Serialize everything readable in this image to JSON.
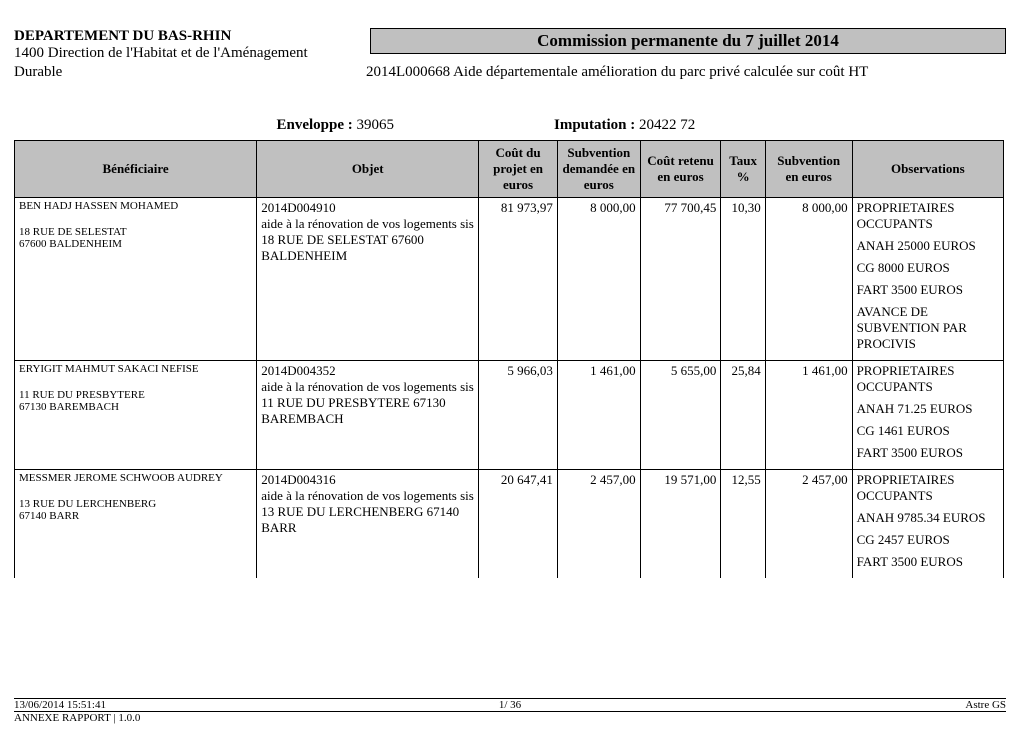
{
  "header": {
    "department": "DEPARTEMENT DU BAS-RHIN",
    "direction_line1": "1400 Direction de l'Habitat et de l'Aménagement",
    "direction_line2": "Durable",
    "commission_title": "Commission permanente du 7 juillet 2014",
    "dossier": "2014L000668 Aide départementale amélioration du parc privé calculée sur coût HT",
    "enveloppe_label": "Enveloppe :",
    "enveloppe_value": "39065",
    "imputation_label": "Imputation :",
    "imputation_value": "20422  72"
  },
  "columns": {
    "beneficiaire": "Bénéficiaire",
    "objet": "Objet",
    "cout_projet": "Coût du projet en euros",
    "subv_demandee": "Subvention demandée en euros",
    "cout_retenu": "Coût retenu en euros",
    "taux": "Taux %",
    "subv_euros": "Subvention en euros",
    "observations": "Observations"
  },
  "rows": [
    {
      "benef_name": "BEN HADJ HASSEN MOHAMED",
      "benef_addr1": "18 RUE DE SELESTAT",
      "benef_addr2": "67600 BALDENHEIM",
      "objet_ref": "2014D004910",
      "objet_desc": "aide à la rénovation de vos logements sis 18 RUE DE SELESTAT 67600 BALDENHEIM",
      "cout_projet": "81 973,97",
      "subv_demandee": "8 000,00",
      "cout_retenu": "77 700,45",
      "taux": "10,30",
      "subv_euros": "8 000,00",
      "obs": [
        "PROPRIETAIRES OCCUPANTS",
        "ANAH 25000 EUROS",
        "CG 8000 EUROS",
        "FART 3500 EUROS",
        "AVANCE DE SUBVENTION PAR PROCIVIS"
      ]
    },
    {
      "benef_name": "ERYIGIT MAHMUT SAKACI NEFISE",
      "benef_addr1": "11 RUE DU PRESBYTERE",
      "benef_addr2": "67130 BAREMBACH",
      "objet_ref": "2014D004352",
      "objet_desc": "aide à la rénovation de vos logements sis 11 RUE DU PRESBYTERE 67130 BAREMBACH",
      "cout_projet": "5 966,03",
      "subv_demandee": "1 461,00",
      "cout_retenu": "5 655,00",
      "taux": "25,84",
      "subv_euros": "1 461,00",
      "obs": [
        "PROPRIETAIRES OCCUPANTS",
        "ANAH 71.25 EUROS",
        "CG 1461 EUROS",
        "FART 3500 EUROS"
      ]
    },
    {
      "benef_name": "MESSMER JEROME SCHWOOB AUDREY",
      "benef_addr1": "13 RUE DU LERCHENBERG",
      "benef_addr2": "67140 BARR",
      "objet_ref": "2014D004316",
      "objet_desc": "aide à la rénovation de vos logements sis 13 RUE DU LERCHENBERG 67140 BARR",
      "cout_projet": "20 647,41",
      "subv_demandee": "2 457,00",
      "cout_retenu": "19 571,00",
      "taux": "12,55",
      "subv_euros": "2 457,00",
      "obs": [
        "PROPRIETAIRES OCCUPANTS",
        "ANAH 9785.34 EUROS",
        "CG 2457 EUROS",
        "FART 3500 EUROS"
      ]
    }
  ],
  "footer": {
    "timestamp": "13/06/2014 15:51:41",
    "page": "1/   36",
    "system": "Astre GS",
    "annex": "ANNEXE RAPPORT  | 1.0.0"
  },
  "style": {
    "header_bg": "#c0c0c0",
    "border_color": "#000000",
    "col_widths": {
      "beneficiaire": 240,
      "objet": 220,
      "cout_projet": 78,
      "subv_demandee": 82,
      "cout_retenu": 80,
      "taux": 44,
      "subv_euros": 86,
      "observations": 150
    }
  }
}
